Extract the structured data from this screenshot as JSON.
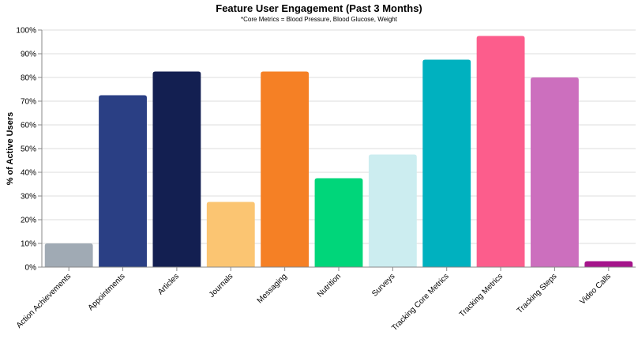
{
  "chart_data": {
    "type": "bar",
    "title": "Feature User Engagement (Past 3 Months)",
    "subtitle": "*Core Metrics = Blood Pressure, Blood Glucose, Weight",
    "xlabel": "",
    "ylabel": "% of Active Users",
    "ylim": [
      0,
      100
    ],
    "y_ticks": [
      "0%",
      "10%",
      "20%",
      "30%",
      "40%",
      "50%",
      "60%",
      "70%",
      "80%",
      "90%",
      "100%"
    ],
    "grid": true,
    "categories": [
      "Action Achievements",
      "Appointments",
      "Articles",
      "Journals",
      "Messaging",
      "Nutrition",
      "Surveys",
      "Tracking Core Metrics",
      "Tracking Metrics",
      "Tracking Steps",
      "Video Calls"
    ],
    "values": [
      10,
      72.5,
      82.5,
      27.5,
      82.5,
      37.5,
      47.5,
      87.5,
      97.5,
      80,
      2.5
    ],
    "colors": [
      "#a0aab4",
      "#2a3f84",
      "#131f51",
      "#fbc572",
      "#f58025",
      "#00d67a",
      "#ccedf0",
      "#00b1bf",
      "#fc5d8c",
      "#cc6fbe",
      "#a5148b"
    ]
  }
}
